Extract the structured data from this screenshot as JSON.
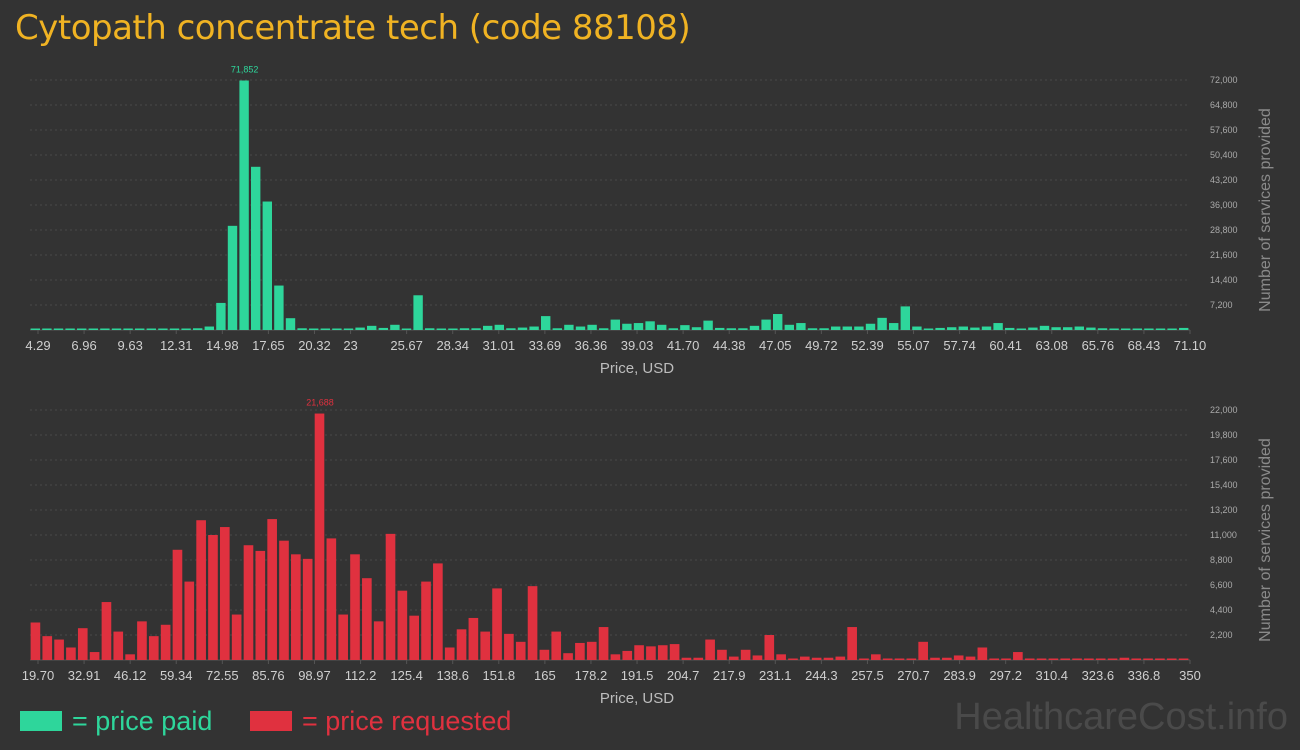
{
  "title": "Cytopath concentrate tech (code 88108)",
  "legend": {
    "paid_label": "= price paid",
    "requested_label": "= price requested",
    "paid_color": "#2ed69b",
    "requested_color": "#e0313f"
  },
  "brand": "HealthcareCost.info",
  "chart_data": [
    {
      "type": "bar",
      "name": "price paid",
      "color": "#2ed69b",
      "xlabel": "Price, USD",
      "ylabel": "Number of services provided",
      "ylim": [
        0,
        72000
      ],
      "y_ticks": [
        "7,200",
        "14,400",
        "21,600",
        "28,800",
        "36,000",
        "43,200",
        "50,400",
        "57,600",
        "64,800",
        "72,000"
      ],
      "x_ticks": [
        "4.29",
        "6.96",
        "9.63",
        "12.31",
        "14.98",
        "17.65",
        "20.32",
        "23",
        "25.67",
        "28.34",
        "31.01",
        "33.69",
        "36.36",
        "39.03",
        "41.70",
        "44.38",
        "47.05",
        "49.72",
        "52.39",
        "55.07",
        "57.74",
        "60.41",
        "63.08",
        "65.76",
        "68.43",
        "71.10"
      ],
      "peak_label": "71,852",
      "values": [
        300,
        300,
        200,
        200,
        200,
        200,
        200,
        200,
        200,
        200,
        200,
        200,
        300,
        300,
        500,
        1000,
        7800,
        30000,
        71852,
        47000,
        37000,
        12800,
        3400,
        500,
        400,
        400,
        400,
        300,
        700,
        1200,
        600,
        1500,
        300,
        10000,
        500,
        400,
        400,
        500,
        500,
        1200,
        1500,
        500,
        700,
        1000,
        4000,
        500,
        1500,
        1000,
        1500,
        500,
        3000,
        1800,
        2000,
        2500,
        1500,
        500,
        1400,
        800,
        2700,
        600,
        500,
        500,
        1200,
        3000,
        4600,
        1500,
        2000,
        500,
        500,
        1000,
        1000,
        1000,
        1800,
        3500,
        2000,
        6800,
        1000,
        400,
        600,
        800,
        1000,
        700,
        1000,
        2000,
        600,
        400,
        700,
        1200,
        800,
        800,
        1000,
        700,
        500,
        300,
        200,
        200,
        200,
        400,
        300,
        600
      ]
    },
    {
      "type": "bar",
      "name": "price requested",
      "color": "#e0313f",
      "xlabel": "Price, USD",
      "ylabel": "Number of services provided",
      "ylim": [
        0,
        22000
      ],
      "y_ticks": [
        "2,200",
        "4,400",
        "6,600",
        "8,800",
        "11,000",
        "13,200",
        "15,400",
        "17,600",
        "19,800",
        "22,000"
      ],
      "x_ticks": [
        "19.70",
        "32.91",
        "46.12",
        "59.34",
        "72.55",
        "85.76",
        "98.97",
        "112.2",
        "125.4",
        "138.6",
        "151.8",
        "165",
        "178.2",
        "191.5",
        "204.7",
        "217.9",
        "231.1",
        "244.3",
        "257.5",
        "270.7",
        "283.9",
        "297.2",
        "310.4",
        "323.6",
        "336.8",
        "350"
      ],
      "peak_label": "21,688",
      "values": [
        3300,
        2100,
        1800,
        1100,
        2800,
        700,
        5100,
        2500,
        500,
        3400,
        2100,
        3100,
        9700,
        6900,
        12300,
        11000,
        11700,
        4000,
        10100,
        9600,
        12400,
        10500,
        9300,
        8900,
        21688,
        10700,
        4000,
        9300,
        7200,
        3400,
        11100,
        6100,
        3900,
        6900,
        8500,
        1100,
        2700,
        3700,
        2500,
        6300,
        2300,
        1600,
        6500,
        900,
        2500,
        600,
        1500,
        1600,
        2900,
        500,
        800,
        1300,
        1200,
        1300,
        1400,
        200,
        200,
        1800,
        900,
        300,
        900,
        400,
        2200,
        500,
        100,
        300,
        200,
        200,
        300,
        2900,
        100,
        500,
        100,
        100,
        100,
        1600,
        200,
        200,
        400,
        300,
        1100,
        100,
        100,
        700,
        100,
        100,
        100,
        100,
        100,
        100,
        100,
        100,
        200,
        100,
        100,
        100,
        100,
        100
      ]
    }
  ]
}
